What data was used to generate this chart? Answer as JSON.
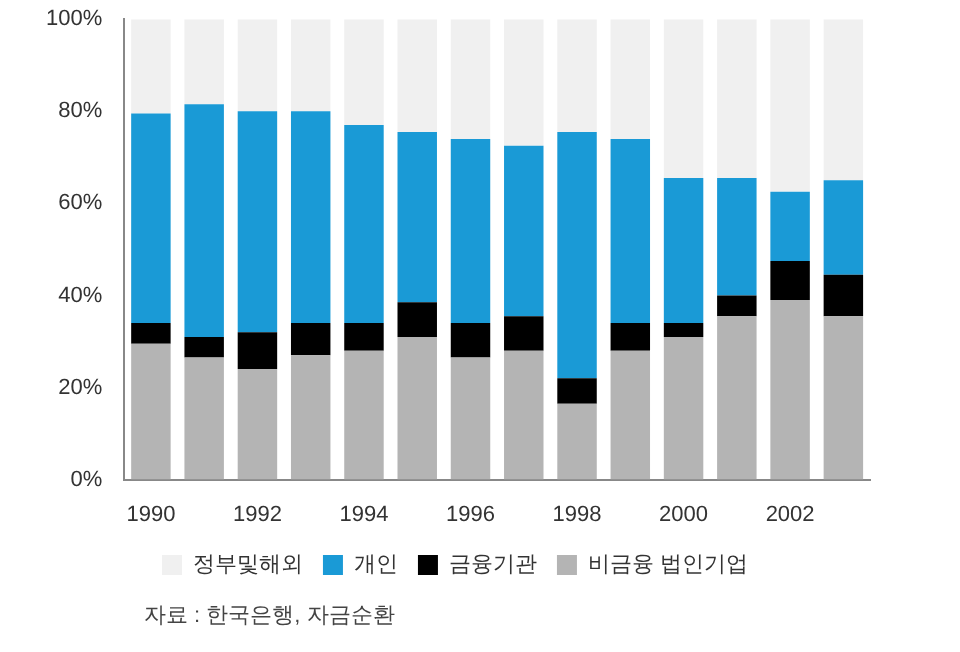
{
  "chart_data": {
    "type": "bar",
    "stacked": true,
    "categories": [
      "1990",
      null,
      "1992",
      null,
      "1994",
      null,
      "1996",
      null,
      "1998",
      null,
      "2000",
      null,
      "2002",
      null
    ],
    "series": [
      {
        "name": "비금융 법인기업",
        "color": "#b4b4b4",
        "values": [
          29.5,
          26.5,
          24,
          27,
          28,
          31,
          26.5,
          28,
          16.5,
          28,
          31,
          35.5,
          39,
          35.5
        ]
      },
      {
        "name": "금융기관",
        "color": "#000000",
        "values": [
          4.5,
          4.5,
          8,
          7,
          6,
          7.5,
          7.5,
          7.5,
          5.5,
          6,
          3,
          4.5,
          8.5,
          9
        ]
      },
      {
        "name": "개인",
        "color": "#1a9ad6",
        "values": [
          45.5,
          50.5,
          48,
          46,
          43,
          37,
          40,
          37,
          53.5,
          40,
          31.5,
          25.5,
          15,
          20.5
        ]
      },
      {
        "name": "정부및해외",
        "color": "#f0f0f0",
        "values": [
          20.5,
          18.5,
          20,
          20,
          23,
          24.5,
          26,
          27.5,
          24.5,
          26,
          34.5,
          34.5,
          37.5,
          35
        ]
      }
    ],
    "ylim": [
      0,
      100
    ],
    "yticks": [
      {
        "value": 0,
        "label": "0%"
      },
      {
        "value": 20,
        "label": "20%"
      },
      {
        "value": 40,
        "label": "40%"
      },
      {
        "value": 60,
        "label": "60%"
      },
      {
        "value": 80,
        "label": "80%"
      },
      {
        "value": 100,
        "label": "100%"
      }
    ],
    "grid": false,
    "legend": "bottom",
    "annotations": [
      "자료 : 한국은행, 자금순환"
    ]
  }
}
